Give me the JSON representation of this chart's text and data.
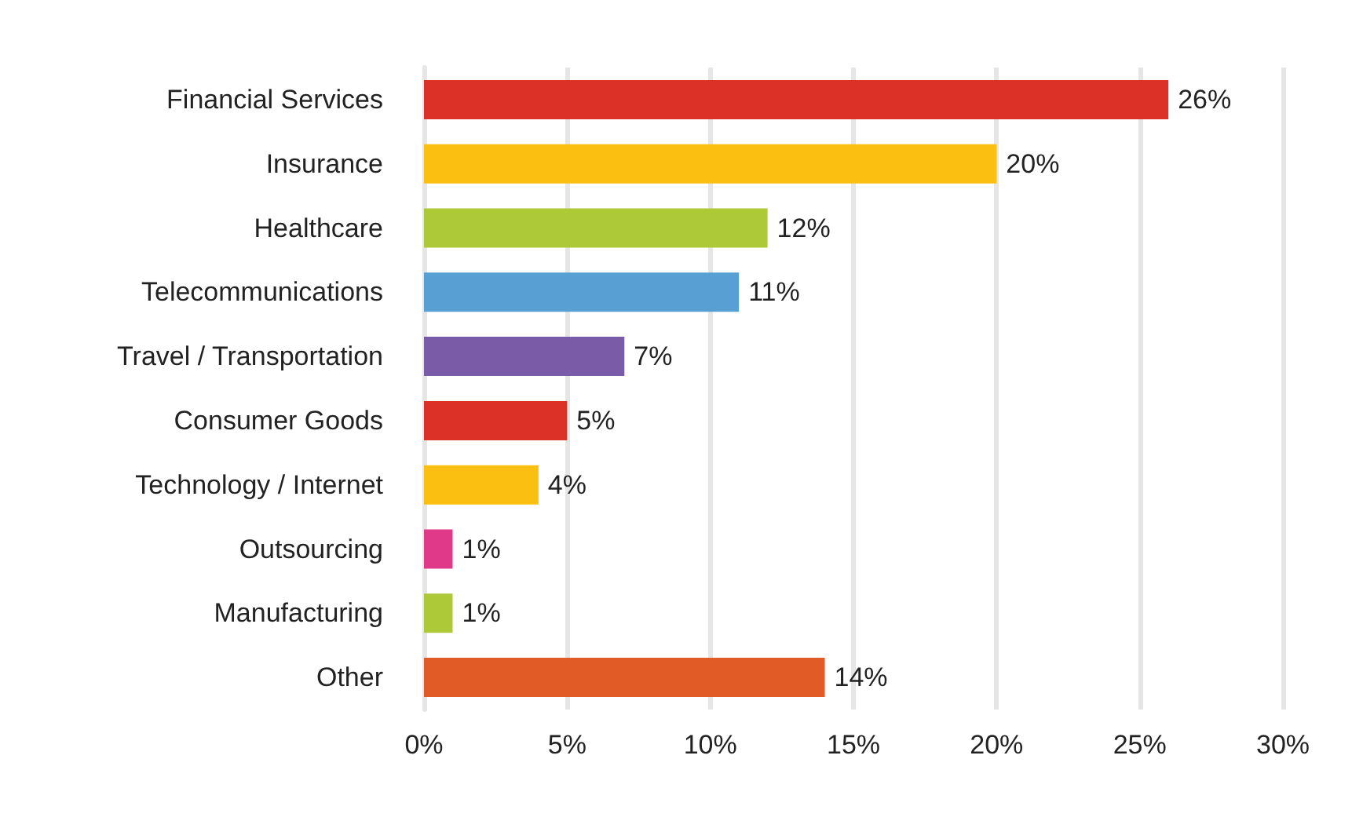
{
  "chart_data": {
    "type": "bar",
    "orientation": "horizontal",
    "categories": [
      "Financial Services",
      "Insurance",
      "Healthcare",
      "Telecommunications",
      "Travel / Transportation",
      "Consumer Goods",
      "Technology / Internet",
      "Outsourcing",
      "Manufacturing",
      "Other"
    ],
    "values": [
      26,
      20,
      12,
      11,
      7,
      5,
      4,
      1,
      1,
      14
    ],
    "colors": [
      "#dc3127",
      "#fbbf12",
      "#adc937",
      "#58a0d3",
      "#7a5ba8",
      "#dc3127",
      "#fbbf12",
      "#e0398a",
      "#adc937",
      "#e05b26"
    ],
    "value_labels": [
      "26%",
      "20%",
      "12%",
      "11%",
      "7%",
      "5%",
      "4%",
      "1%",
      "1%",
      "14%"
    ],
    "xlim": [
      0,
      30
    ],
    "xticks": [
      {
        "value": 0,
        "label": "0%"
      },
      {
        "value": 5,
        "label": "5%"
      },
      {
        "value": 10,
        "label": "10%"
      },
      {
        "value": 15,
        "label": "15%"
      },
      {
        "value": 20,
        "label": "20%"
      },
      {
        "value": 25,
        "label": "25%"
      },
      {
        "value": 30,
        "label": "30%"
      }
    ],
    "grid": "x"
  }
}
